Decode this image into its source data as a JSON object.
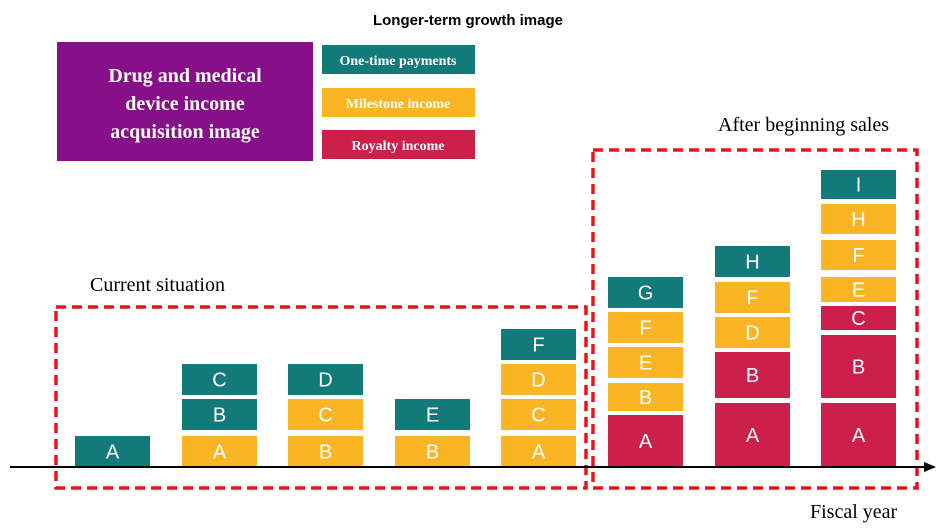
{
  "title": "Longer-term growth image",
  "info_box": {
    "lines": [
      "Drug and medical",
      "device income",
      "acquisition image"
    ]
  },
  "legend": [
    {
      "kind": "one_time",
      "label": "One-time payments"
    },
    {
      "kind": "milestone",
      "label": "Milestone income"
    },
    {
      "kind": "royalty",
      "label": "Royalty income"
    }
  ],
  "regions": [
    {
      "label": "Current situation"
    },
    {
      "label": "After beginning sales"
    }
  ],
  "axis_label": "Fiscal year",
  "columns": [
    {
      "blocks": [
        {
          "kind": "one_time",
          "label": "A"
        }
      ]
    },
    {
      "blocks": [
        {
          "kind": "milestone",
          "label": "A"
        },
        {
          "kind": "one_time",
          "label": "B"
        },
        {
          "kind": "one_time",
          "label": "C"
        }
      ]
    },
    {
      "blocks": [
        {
          "kind": "milestone",
          "label": "B"
        },
        {
          "kind": "milestone",
          "label": "C"
        },
        {
          "kind": "one_time",
          "label": "D"
        }
      ]
    },
    {
      "blocks": [
        {
          "kind": "milestone",
          "label": "B"
        },
        {
          "kind": "one_time",
          "label": "E"
        }
      ]
    },
    {
      "blocks": [
        {
          "kind": "milestone",
          "label": "A"
        },
        {
          "kind": "milestone",
          "label": "C"
        },
        {
          "kind": "milestone",
          "label": "D"
        },
        {
          "kind": "one_time",
          "label": "F"
        }
      ]
    },
    {
      "blocks": [
        {
          "kind": "royalty",
          "label": "A"
        },
        {
          "kind": "milestone",
          "label": "B"
        },
        {
          "kind": "milestone",
          "label": "E"
        },
        {
          "kind": "milestone",
          "label": "F"
        },
        {
          "kind": "one_time",
          "label": "G"
        }
      ]
    },
    {
      "blocks": [
        {
          "kind": "royalty",
          "label": "A"
        },
        {
          "kind": "royalty",
          "label": "B"
        },
        {
          "kind": "milestone",
          "label": "D"
        },
        {
          "kind": "milestone",
          "label": "F"
        },
        {
          "kind": "one_time",
          "label": "H"
        }
      ]
    },
    {
      "blocks": [
        {
          "kind": "royalty",
          "label": "A"
        },
        {
          "kind": "royalty",
          "label": "B"
        },
        {
          "kind": "royalty",
          "label": "C"
        },
        {
          "kind": "milestone",
          "label": "E"
        },
        {
          "kind": "milestone",
          "label": "F"
        },
        {
          "kind": "milestone",
          "label": "H"
        },
        {
          "kind": "one_time",
          "label": "I"
        }
      ]
    }
  ]
}
